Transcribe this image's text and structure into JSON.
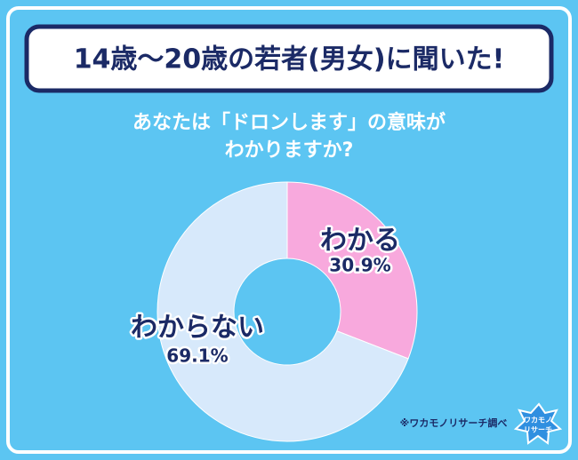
{
  "chart_data": {
    "type": "donut",
    "title": "14歳～20歳の若者(男女)に聞いた!",
    "subtitle": [
      "あなたは「ドロンします」の意味が",
      "わかりますか?"
    ],
    "categories": [
      "わかる",
      "わからない"
    ],
    "values": [
      30.9,
      69.1
    ],
    "value_labels": [
      "30.9%",
      "69.1%"
    ],
    "colors": [
      "#f8a9dd",
      "#d7e9fb"
    ],
    "source": "※ワカモノリサーチ調べ",
    "logo": [
      "ワカモノ",
      "リサーチ"
    ]
  }
}
